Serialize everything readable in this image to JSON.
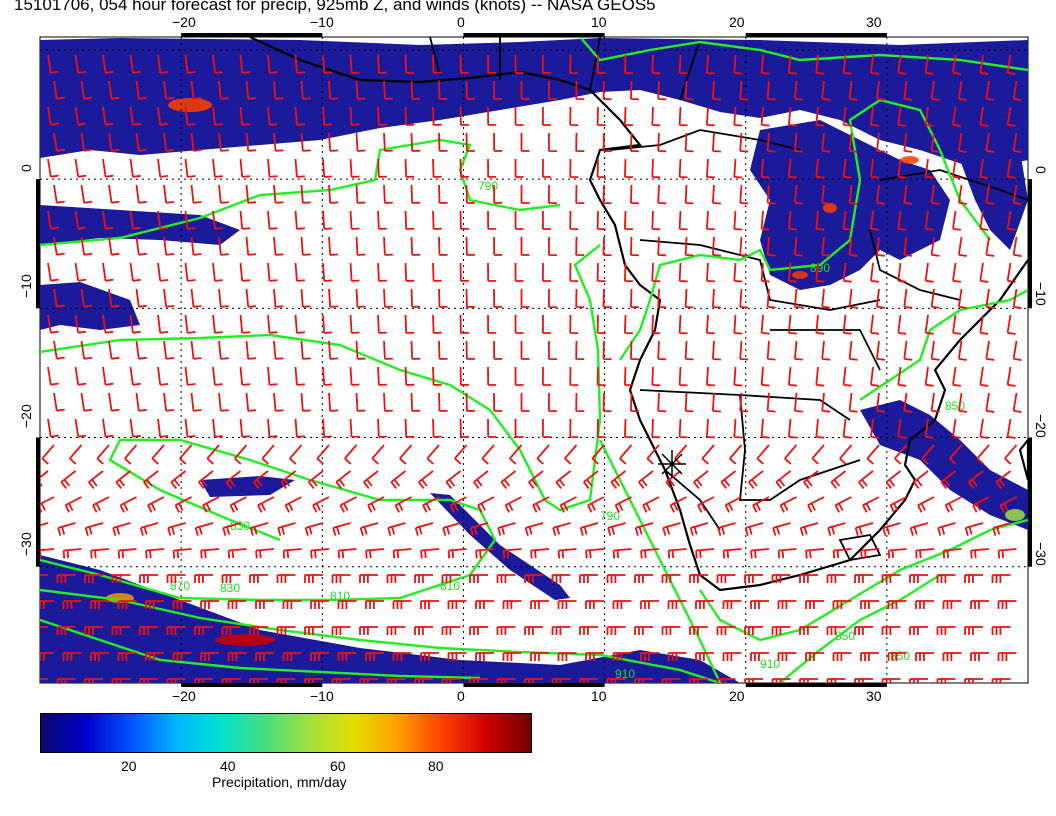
{
  "title": "15101706, 054 hour forecast for precip, 925mb Z, and winds (knots) -- NASA GEOS5",
  "map": {
    "lon_ticks": [
      "−20",
      "−10",
      "0",
      "10",
      "20",
      "30"
    ],
    "lat_ticks": [
      "0",
      "−10",
      "−20",
      "−30"
    ],
    "lon_range": [
      -30,
      40
    ],
    "lat_range": [
      -39,
      11
    ],
    "contour_labels": [
      "790",
      "790",
      "810",
      "810",
      "830",
      "830",
      "850",
      "850",
      "850",
      "870",
      "890",
      "910",
      "910"
    ],
    "colors": {
      "precip_fill": "#1a1a9a",
      "precip_dark": "#0a0a78",
      "contour": "#22ee22",
      "wind_barb": "#ee1111",
      "coastline": "#000000"
    }
  },
  "colorbar": {
    "title": "Precipitation, mm/day",
    "ticks": [
      "20",
      "40",
      "60",
      "80"
    ],
    "range": [
      0,
      100
    ],
    "colors": [
      "#0a0a6e",
      "#0000c8",
      "#0050ff",
      "#00b4ff",
      "#00e0d0",
      "#40e080",
      "#a0e040",
      "#e0e000",
      "#ffa000",
      "#ff4000",
      "#d00000",
      "#700000"
    ]
  }
}
